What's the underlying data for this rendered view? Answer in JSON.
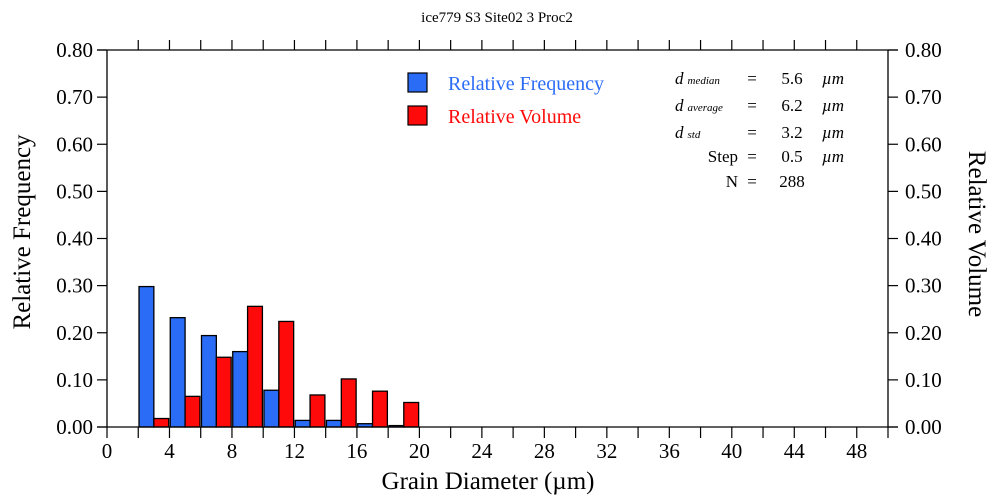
{
  "chart_data": {
    "type": "bar",
    "title": "ice779 S3 Site02 3 Proc2",
    "xlabel": "Grain Diameter (µm)",
    "ylabel": "Relative Frequency",
    "y2label": "Relative Volume",
    "xlim": [
      0,
      50
    ],
    "ylim": [
      0,
      0.8
    ],
    "y2lim": [
      0,
      0.8
    ],
    "x_tick_labels": [
      "0",
      "4",
      "8",
      "12",
      "16",
      "20",
      "24",
      "28",
      "32",
      "36",
      "40",
      "44",
      "48"
    ],
    "y_tick_labels": [
      "0.00",
      "0.10",
      "0.20",
      "0.30",
      "0.40",
      "0.50",
      "0.60",
      "0.70",
      "0.80"
    ],
    "y2_tick_labels": [
      "0.00",
      "0.10",
      "0.20",
      "0.30",
      "0.40",
      "0.50",
      "0.60",
      "0.70",
      "0.80"
    ],
    "bin_centers": [
      3,
      5,
      7,
      9,
      11,
      13,
      15,
      17,
      19
    ],
    "series": [
      {
        "name": "Relative Frequency",
        "color": "#2B6CF6",
        "values": [
          0.298,
          0.232,
          0.194,
          0.16,
          0.078,
          0.014,
          0.014,
          0.007,
          0.003
        ]
      },
      {
        "name": "Relative Volume",
        "color": "#FF0A0A",
        "values": [
          0.018,
          0.065,
          0.148,
          0.256,
          0.224,
          0.068,
          0.102,
          0.076,
          0.052
        ]
      }
    ],
    "legend_position": "top-center",
    "grid": false
  },
  "legend": {
    "items": [
      {
        "label": "Relative Frequency",
        "color": "#2B6CF6"
      },
      {
        "label": "Relative Volume",
        "color": "#FF0A0A"
      }
    ]
  },
  "stats": {
    "rows": [
      {
        "symbol": "d",
        "sub": "median",
        "eq": "=",
        "value": "5.6",
        "unit": "µm"
      },
      {
        "symbol": "d",
        "sub": "average",
        "eq": "=",
        "value": "6.2",
        "unit": "µm"
      },
      {
        "symbol": "d",
        "sub": "std",
        "eq": "=",
        "value": "3.2",
        "unit": "µm"
      },
      {
        "symbol": "Step",
        "sub": "",
        "eq": "=",
        "value": "0.5",
        "unit": "µm"
      },
      {
        "symbol": "N",
        "sub": "",
        "eq": "=",
        "value": "288",
        "unit": ""
      }
    ]
  }
}
